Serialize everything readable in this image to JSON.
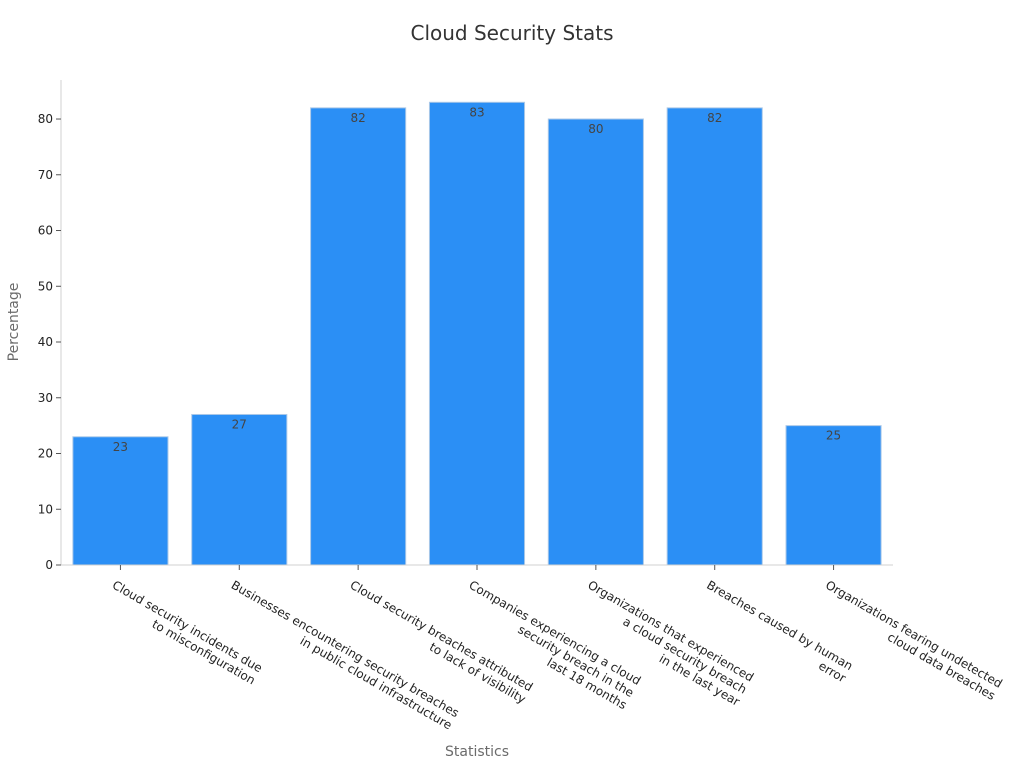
{
  "chart_data": {
    "type": "bar",
    "title": "Cloud Security Stats",
    "xlabel": "Statistics",
    "ylabel": "Percentage",
    "ylim": [
      0,
      87
    ],
    "yticks": [
      0,
      10,
      20,
      30,
      40,
      50,
      60,
      70,
      80
    ],
    "grid": false,
    "bar_color": "#2b8ff5",
    "categories": [
      [
        "Cloud security incidents due",
        "to misconfiguration"
      ],
      [
        "Businesses encountering security breaches",
        "in public cloud infrastructure"
      ],
      [
        "Cloud security breaches attributed",
        "to lack of visibility"
      ],
      [
        "Companies experiencing a cloud",
        "security breach in the",
        "last 18 months"
      ],
      [
        "Organizations that experienced",
        "a cloud security breach",
        "in the last year"
      ],
      [
        "Breaches caused by human",
        "error"
      ],
      [
        "Organizations fearing undetected",
        "cloud data breaches"
      ]
    ],
    "values": [
      23,
      27,
      82,
      83,
      80,
      82,
      25
    ]
  }
}
